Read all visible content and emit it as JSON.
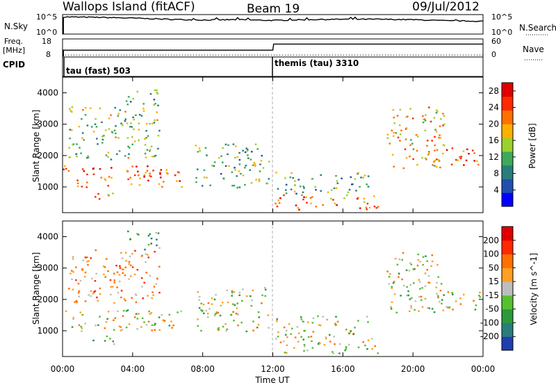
{
  "header": {
    "station": "Wallops Island (fitACF)",
    "beam": "Beam 19",
    "date": "09/Jul/2012"
  },
  "nsky_panel": {
    "left_label": "N.Sky",
    "right_label": "N.Search",
    "left_ticks": [
      "10^5",
      "10^0"
    ],
    "right_ticks": [
      "10^5",
      "10^0"
    ]
  },
  "freq_panel": {
    "left_label_1": "Freq.",
    "left_label_2": "[MHz]",
    "left_ticks": [
      "18",
      "8"
    ],
    "right_ticks": [
      "60",
      "0"
    ],
    "right_label": "Nave",
    "cpid_label": "CPID"
  },
  "cpid_segments": [
    {
      "label": "tau (fast) 503",
      "start": "00:00"
    },
    {
      "label": "themis (tau) 3310",
      "start": "12:00"
    }
  ],
  "colors": {
    "text": "#000000",
    "grid_line": "#999999"
  },
  "chart_data": [
    {
      "type": "line",
      "title": "N.Sky / N.Search",
      "x_range": [
        "00:00",
        "24:00"
      ],
      "series": [
        {
          "name": "N.Sky",
          "x_hours": [
            0.05,
            2,
            4,
            6,
            8,
            10,
            12,
            14,
            16,
            18,
            20,
            22,
            24
          ],
          "y_log10": [
            4.4,
            4.3,
            4.1,
            3.8,
            3.6,
            3.7,
            3.5,
            3.7,
            3.8,
            3.8,
            3.7,
            3.4,
            3.3
          ]
        }
      ]
    },
    {
      "type": "line",
      "title": "Frequency / Nave",
      "series": [
        {
          "name": "Freq. [MHz]",
          "x_hours": [
            0.05,
            12,
            12.05,
            24
          ],
          "y": [
            12,
            12,
            16,
            16
          ]
        },
        {
          "name": "Nave",
          "x_hours": [
            0,
            24
          ],
          "y": [
            5,
            5
          ],
          "style": "dotted"
        }
      ]
    },
    {
      "type": "heatmap",
      "quantity": "Power",
      "ylabel": "Slant Range [km]",
      "xlabel": "Time UT",
      "ylim": [
        180,
        4500
      ],
      "y_ticks": [
        1000,
        2000,
        3000,
        4000
      ],
      "colorbar": {
        "label": "Power [dB]",
        "ticks": [
          4,
          8,
          12,
          16,
          20,
          24,
          28
        ],
        "range": [
          0,
          30
        ],
        "colors": [
          "#0000ff",
          "#1f4fb0",
          "#2a7d7d",
          "#3caa5a",
          "#9cd02c",
          "#ffb000",
          "#ff7000",
          "#ff2a00",
          "#e00000"
        ]
      },
      "echo_regions": [
        {
          "t0": 0,
          "t1": 6.8,
          "r0": 1000,
          "r1": 1700,
          "db": 24
        },
        {
          "t0": 0.3,
          "t1": 5.5,
          "r0": 1900,
          "r1": 3600,
          "db": 14
        },
        {
          "t0": 3.5,
          "t1": 5.5,
          "r0": 3600,
          "r1": 4200,
          "db": 12
        },
        {
          "t0": 1.5,
          "t1": 3,
          "r0": 600,
          "r1": 900,
          "db": 20
        },
        {
          "t0": 7.5,
          "t1": 11.8,
          "r0": 1000,
          "r1": 2400,
          "db": 12
        },
        {
          "t0": 12.1,
          "t1": 18,
          "r0": 300,
          "r1": 800,
          "db": 22
        },
        {
          "t0": 12.1,
          "t1": 17.5,
          "r0": 800,
          "r1": 1500,
          "db": 12
        },
        {
          "t0": 18.5,
          "t1": 21.8,
          "r0": 1600,
          "r1": 3600,
          "db": 18
        },
        {
          "t0": 21.8,
          "t1": 24,
          "r0": 1700,
          "r1": 2300,
          "db": 26
        }
      ]
    },
    {
      "type": "heatmap",
      "quantity": "Velocity",
      "ylabel": "Slant Range [km]",
      "xlabel": "Time UT",
      "ylim": [
        180,
        4500
      ],
      "y_ticks": [
        1000,
        2000,
        3000,
        4000
      ],
      "x_ticks": [
        "00:00",
        "04:00",
        "08:00",
        "12:00",
        "16:00",
        "20:00",
        "00:00"
      ],
      "colorbar": {
        "label": "Velocity [m s^-1]",
        "ticks": [
          "200",
          "100",
          "50",
          "15",
          "-15",
          "-50",
          "-100",
          "-200"
        ],
        "colors": [
          "#1f3fb0",
          "#2a7d7d",
          "#2c9a3a",
          "#55c030",
          "#bdbdbd",
          "#ffa020",
          "#ff7000",
          "#ff2a00",
          "#e00000"
        ]
      },
      "echo_regions": [
        {
          "t0": 0,
          "t1": 6.8,
          "r0": 1000,
          "r1": 1700,
          "v": 0
        },
        {
          "t0": 0.3,
          "t1": 5.5,
          "r0": 1900,
          "r1": 3600,
          "v": -60
        },
        {
          "t0": 3.5,
          "t1": 5.5,
          "r0": 3600,
          "r1": 4200,
          "v": 60
        },
        {
          "t0": 1.5,
          "t1": 3,
          "r0": 600,
          "r1": 900,
          "v": 70
        },
        {
          "t0": 7.5,
          "t1": 11.8,
          "r0": 1000,
          "r1": 2400,
          "v": 10
        },
        {
          "t0": 12.1,
          "t1": 18,
          "r0": 300,
          "r1": 800,
          "v": 0
        },
        {
          "t0": 12.1,
          "t1": 17.5,
          "r0": 800,
          "r1": 1500,
          "v": 0
        },
        {
          "t0": 18.5,
          "t1": 21.8,
          "r0": 1600,
          "r1": 3600,
          "v": 0
        },
        {
          "t0": 21.8,
          "t1": 24,
          "r0": 1700,
          "r1": 2300,
          "v": 0
        }
      ]
    }
  ]
}
